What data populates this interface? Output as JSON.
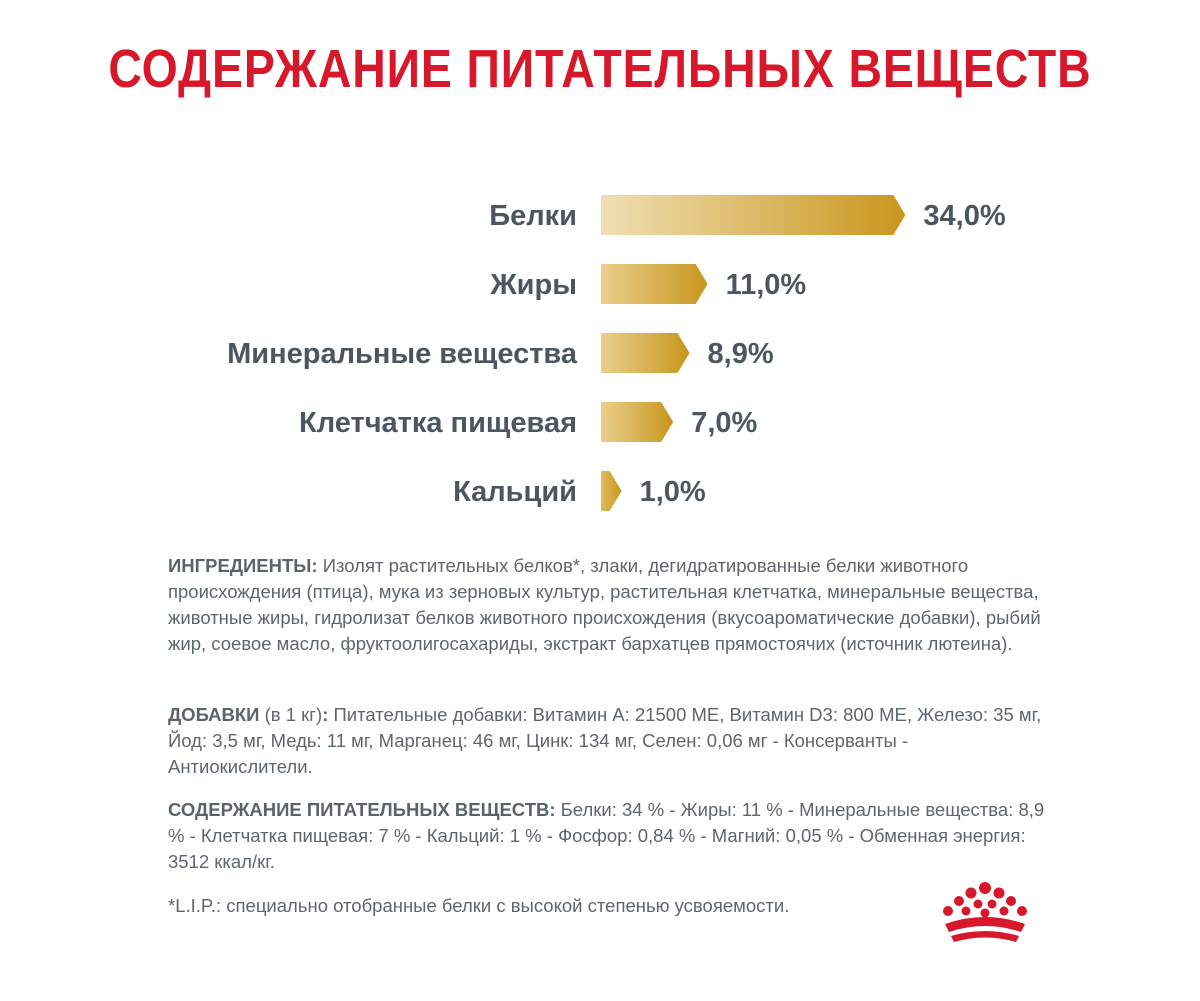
{
  "title": "СОДЕРЖАНИЕ ПИТАТЕЛЬНЫХ ВЕЩЕСТВ",
  "chart_data": {
    "type": "bar",
    "orientation": "horizontal",
    "categories": [
      "Белки",
      "Жиры",
      "Минеральные вещества",
      "Клетчатка пищевая",
      "Кальций"
    ],
    "values": [
      34.0,
      11.0,
      8.9,
      7.0,
      1.0
    ],
    "value_labels": [
      "34,0%",
      "11,0%",
      "8,9%",
      "7,0%",
      "1,0%"
    ],
    "unit": "%",
    "title": "",
    "xlabel": "",
    "ylabel": "",
    "grid": false,
    "legend": "none",
    "colors": {
      "bar_light": "#ecd7a6",
      "bar_dark": "#c9981f",
      "text": "#4b5661"
    }
  },
  "ingredients": {
    "heading": "ИНГРЕДИЕНТЫ:",
    "text": " Изолят растительных белков*, злаки, дегидратированные белки животного происхождения (птица), мука из зерновых культур, растительная клетчатка, минеральные вещества, животные жиры, гидролизат белков животного происхождения (вкусоароматические добавки), рыбий жир, соевое масло, фруктоолигосахариды, экстракт бархатцев прямостоячих (источник лютеина)."
  },
  "additives": {
    "heading": "ДОБАВКИ",
    "unit": " (в 1 кг)",
    "colon": ":",
    "text": " Питательные добавки: Витамин А: 21500 МЕ, Витамин D3: 800 МЕ, Железо: 35 мг, Йод: 3,5 мг, Медь: 11 мг, Марганец: 46 мг, Цинк: 134 мг, Селен: 0,06 мг - Консерванты - Антиокислители."
  },
  "nutrients": {
    "heading": "СОДЕРЖАНИЕ ПИТАТЕЛЬНЫХ ВЕЩЕСТВ:",
    "text": " Белки: 34 % - Жиры: 11 % - Минеральные вещества: 8,9 % - Клетчатка пищевая: 7 % - Кальций: 1 % - Фосфор: 0,84 % - Магний: 0,05 % - Обменная энергия: 3512 ккал/кг."
  },
  "footnote": "*L.I.P.: специально отобранные белки с высокой степенью усвояемости.",
  "brand": {
    "logo_icon": "royal-crown-icon",
    "color": "#d7182a"
  },
  "accent_color": "#d7182a"
}
